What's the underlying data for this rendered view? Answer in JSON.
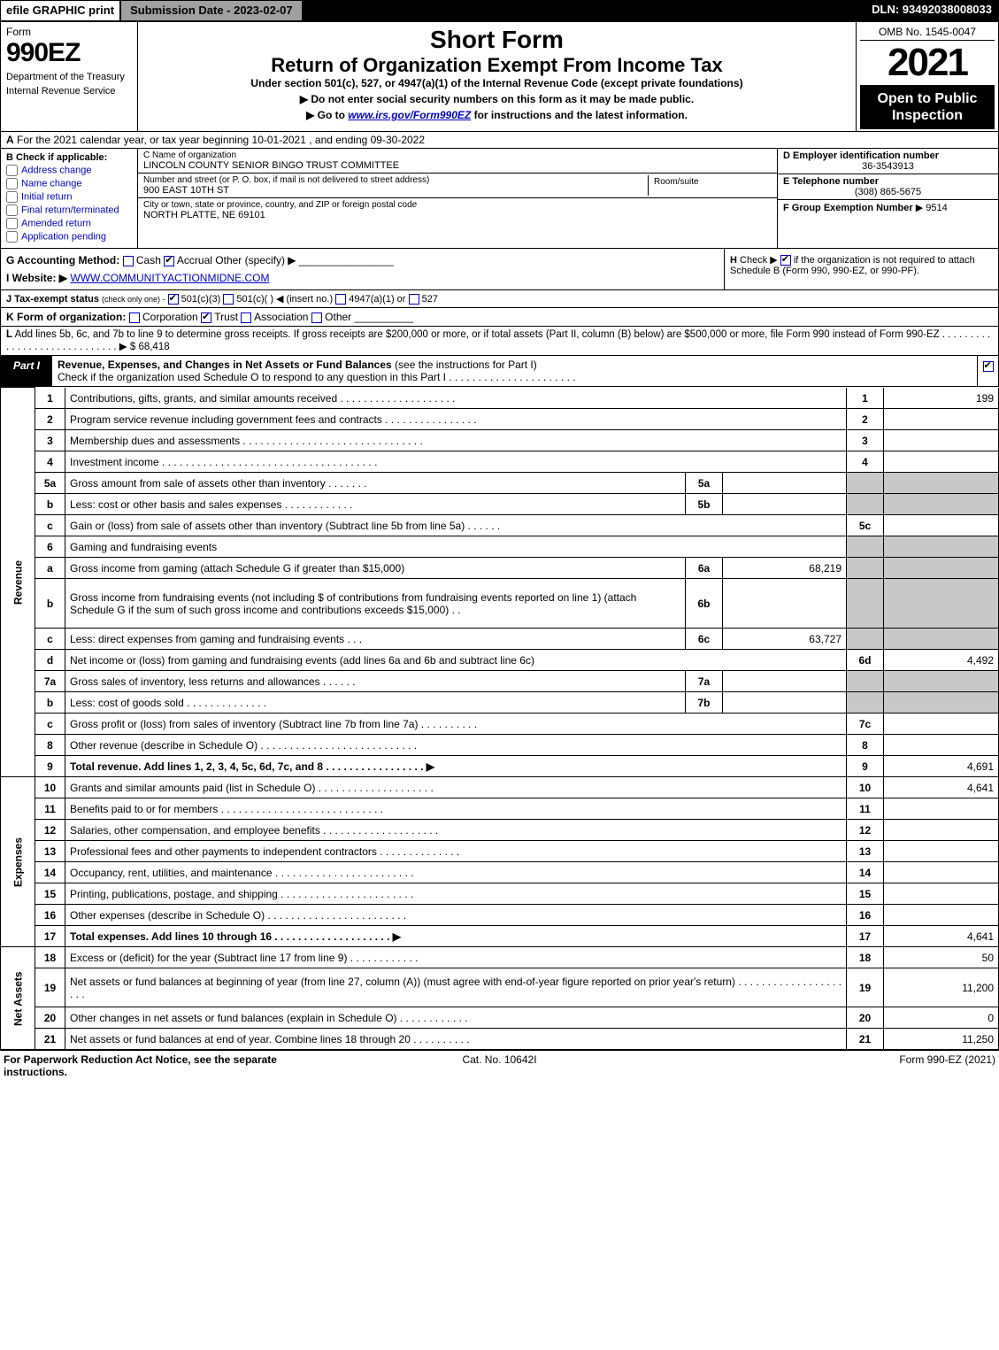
{
  "colors": {
    "black": "#000000",
    "white": "#ffffff",
    "blue_link": "#0000cd",
    "grey_shade": "#c8c8c8",
    "grey_button": "#a0a0a0"
  },
  "top_bar": {
    "efile": "efile GRAPHIC print",
    "submission": "Submission Date - 2023-02-07",
    "dln": "DLN: 93492038008033"
  },
  "header": {
    "form_word": "Form",
    "form_number": "990EZ",
    "department": "Department of the Treasury",
    "irs": "Internal Revenue Service",
    "short_form": "Short Form",
    "title": "Return of Organization Exempt From Income Tax",
    "subtitle": "Under section 501(c), 527, or 4947(a)(1) of the Internal Revenue Code (except private foundations)",
    "note1": "▶ Do not enter social security numbers on this form as it may be made public.",
    "note2_pre": "▶ Go to ",
    "note2_link": "www.irs.gov/Form990EZ",
    "note2_post": " for instructions and the latest information.",
    "omb": "OMB No. 1545-0047",
    "year": "2021",
    "open": "Open to Public Inspection"
  },
  "line_a": {
    "label": "A",
    "text": "For the 2021 calendar year, or tax year beginning 10-01-2021 , and ending 09-30-2022"
  },
  "section_b": {
    "label": "B",
    "heading": "Check if applicable:",
    "options": [
      "Address change",
      "Name change",
      "Initial return",
      "Final return/terminated",
      "Amended return",
      "Application pending"
    ]
  },
  "section_c": {
    "name_label": "C Name of organization",
    "name": "LINCOLN COUNTY SENIOR BINGO TRUST COMMITTEE",
    "street_label": "Number and street (or P. O. box, if mail is not delivered to street address)",
    "street": "900 EAST 10TH ST",
    "room_label": "Room/suite",
    "city_label": "City or town, state or province, country, and ZIP or foreign postal code",
    "city": "NORTH PLATTE, NE  69101"
  },
  "section_d": {
    "ein_label": "D Employer identification number",
    "ein": "36-3543913",
    "phone_label": "E Telephone number",
    "phone": "(308) 865-5675",
    "group_label": "F Group Exemption Number",
    "group": "▶ 9514"
  },
  "g_line": {
    "label": "G Accounting Method:",
    "cash": "Cash",
    "accrual": "Accrual",
    "other": "Other (specify) ▶"
  },
  "h_line": {
    "label": "H",
    "text_pre": "Check ▶",
    "text_post": "if the organization is not required to attach Schedule B (Form 990, 990-EZ, or 990-PF)."
  },
  "i_line": {
    "label": "I Website: ▶",
    "value": "WWW.COMMUNITYACTIONMIDNE.COM"
  },
  "j_line": {
    "label": "J Tax-exempt status",
    "note": "(check only one) -",
    "opt1": "501(c)(3)",
    "opt2": "501(c)(  ) ◀ (insert no.)",
    "opt3": "4947(a)(1) or",
    "opt4": "527"
  },
  "k_line": {
    "label": "K Form of organization:",
    "opts": [
      "Corporation",
      "Trust",
      "Association",
      "Other"
    ]
  },
  "l_line": {
    "label": "L",
    "text": "Add lines 5b, 6c, and 7b to line 9 to determine gross receipts. If gross receipts are $200,000 or more, or if total assets (Part II, column (B) below) are $500,000 or more, file Form 990 instead of Form 990-EZ . . . . . . . . . . . . . . . . . . . . . . . . . . . . . ▶",
    "value": "$ 68,418"
  },
  "part1": {
    "tag": "Part I",
    "title": "Revenue, Expenses, and Changes in Net Assets or Fund Balances",
    "note": "(see the instructions for Part I)",
    "check_text": "Check if the organization used Schedule O to respond to any question in this Part I . . . . . . . . . . . . . . . . . . . . . .",
    "checked": true
  },
  "side_labels": {
    "revenue": "Revenue",
    "expenses": "Expenses",
    "netassets": "Net Assets"
  },
  "rows": [
    {
      "n": "1",
      "desc": "Contributions, gifts, grants, and similar amounts received . . . . . . . . . . . . . . . . . . . .",
      "rn": "1",
      "val": "199"
    },
    {
      "n": "2",
      "desc": "Program service revenue including government fees and contracts . . . . . . . . . . . . . . . .",
      "rn": "2",
      "val": ""
    },
    {
      "n": "3",
      "desc": "Membership dues and assessments . . . . . . . . . . . . . . . . . . . . . . . . . . . . . . .",
      "rn": "3",
      "val": ""
    },
    {
      "n": "4",
      "desc": "Investment income . . . . . . . . . . . . . . . . . . . . . . . . . . . . . . . . . . . . .",
      "rn": "4",
      "val": ""
    },
    {
      "n": "5a",
      "desc": "Gross amount from sale of assets other than inventory . . . . . . .",
      "in": "5a",
      "iv": "",
      "rn": "",
      "val": "",
      "shade": true
    },
    {
      "n": "b",
      "desc": "Less: cost or other basis and sales expenses . . . . . . . . . . . .",
      "in": "5b",
      "iv": "",
      "rn": "",
      "val": "",
      "shade": true
    },
    {
      "n": "c",
      "desc": "Gain or (loss) from sale of assets other than inventory (Subtract line 5b from line 5a) . . . . . .",
      "rn": "5c",
      "val": ""
    },
    {
      "n": "6",
      "desc": "Gaming and fundraising events",
      "rn": "",
      "val": "",
      "shade": true
    },
    {
      "n": "a",
      "desc": "Gross income from gaming (attach Schedule G if greater than $15,000)",
      "in": "6a",
      "iv": "68,219",
      "rn": "",
      "val": "",
      "shade": true
    },
    {
      "n": "b",
      "desc": "Gross income from fundraising events (not including $                      of contributions from fundraising events reported on line 1) (attach Schedule G if the sum of such gross income and contributions exceeds $15,000)  .  .",
      "in": "6b",
      "iv": "",
      "rn": "",
      "val": "",
      "shade": true,
      "tall": true
    },
    {
      "n": "c",
      "desc": "Less: direct expenses from gaming and fundraising events       .  .  .",
      "in": "6c",
      "iv": "63,727",
      "rn": "",
      "val": "",
      "shade": true
    },
    {
      "n": "d",
      "desc": "Net income or (loss) from gaming and fundraising events (add lines 6a and 6b and subtract line 6c)",
      "rn": "6d",
      "val": "4,492"
    },
    {
      "n": "7a",
      "desc": "Gross sales of inventory, less returns and allowances . . . . . .",
      "in": "7a",
      "iv": "",
      "rn": "",
      "val": "",
      "shade": true
    },
    {
      "n": "b",
      "desc": "Less: cost of goods sold       .  .  .  .  .  .  .  .  .  .  .  .  .  .",
      "in": "7b",
      "iv": "",
      "rn": "",
      "val": "",
      "shade": true
    },
    {
      "n": "c",
      "desc": "Gross profit or (loss) from sales of inventory (Subtract line 7b from line 7a) . . . . . . . . . .",
      "rn": "7c",
      "val": ""
    },
    {
      "n": "8",
      "desc": "Other revenue (describe in Schedule O) . . . . . . . . . . . . . . . . . . . . . . . . . . .",
      "rn": "8",
      "val": ""
    },
    {
      "n": "9",
      "desc": "Total revenue. Add lines 1, 2, 3, 4, 5c, 6d, 7c, and 8  . . . . . . . . . . . . . . . . .       ▶",
      "rn": "9",
      "val": "4,691",
      "bold": true
    }
  ],
  "exp_rows": [
    {
      "n": "10",
      "desc": "Grants and similar amounts paid (list in Schedule O) . . . . . . . . . . . . . . . . . . . .",
      "rn": "10",
      "val": "4,641"
    },
    {
      "n": "11",
      "desc": "Benefits paid to or for members    . . . . . . . . . . . . . . . . . . . . . . . . . . . .",
      "rn": "11",
      "val": ""
    },
    {
      "n": "12",
      "desc": "Salaries, other compensation, and employee benefits . . . . . . . . . . . . . . . . . . . .",
      "rn": "12",
      "val": ""
    },
    {
      "n": "13",
      "desc": "Professional fees and other payments to independent contractors . . . . . . . . . . . . . .",
      "rn": "13",
      "val": ""
    },
    {
      "n": "14",
      "desc": "Occupancy, rent, utilities, and maintenance . . . . . . . . . . . . . . . . . . . . . . . .",
      "rn": "14",
      "val": ""
    },
    {
      "n": "15",
      "desc": "Printing, publications, postage, and shipping . . . . . . . . . . . . . . . . . . . . . . .",
      "rn": "15",
      "val": ""
    },
    {
      "n": "16",
      "desc": "Other expenses (describe in Schedule O)    . . . . . . . . . . . . . . . . . . . . . . . .",
      "rn": "16",
      "val": ""
    },
    {
      "n": "17",
      "desc": "Total expenses. Add lines 10 through 16     . . . . . . . . . . . . . . . . . . . .      ▶",
      "rn": "17",
      "val": "4,641",
      "bold": true
    }
  ],
  "na_rows": [
    {
      "n": "18",
      "desc": "Excess or (deficit) for the year (Subtract line 17 from line 9)       .  .  .  .  .  .  .  .  .  .  .  .",
      "rn": "18",
      "val": "50"
    },
    {
      "n": "19",
      "desc": "Net assets or fund balances at beginning of year (from line 27, column (A)) (must agree with end-of-year figure reported on prior year's return) . . . . . . . . . . . . . . . . . . . . .",
      "rn": "19",
      "val": "11,200",
      "tall": true
    },
    {
      "n": "20",
      "desc": "Other changes in net assets or fund balances (explain in Schedule O) . . . . . . . . . . . .",
      "rn": "20",
      "val": "0"
    },
    {
      "n": "21",
      "desc": "Net assets or fund balances at end of year. Combine lines 18 through 20 . . . . . . . . . .",
      "rn": "21",
      "val": "11,250"
    }
  ],
  "footer": {
    "left": "For Paperwork Reduction Act Notice, see the separate instructions.",
    "center": "Cat. No. 10642I",
    "right": "Form 990-EZ (2021)"
  }
}
